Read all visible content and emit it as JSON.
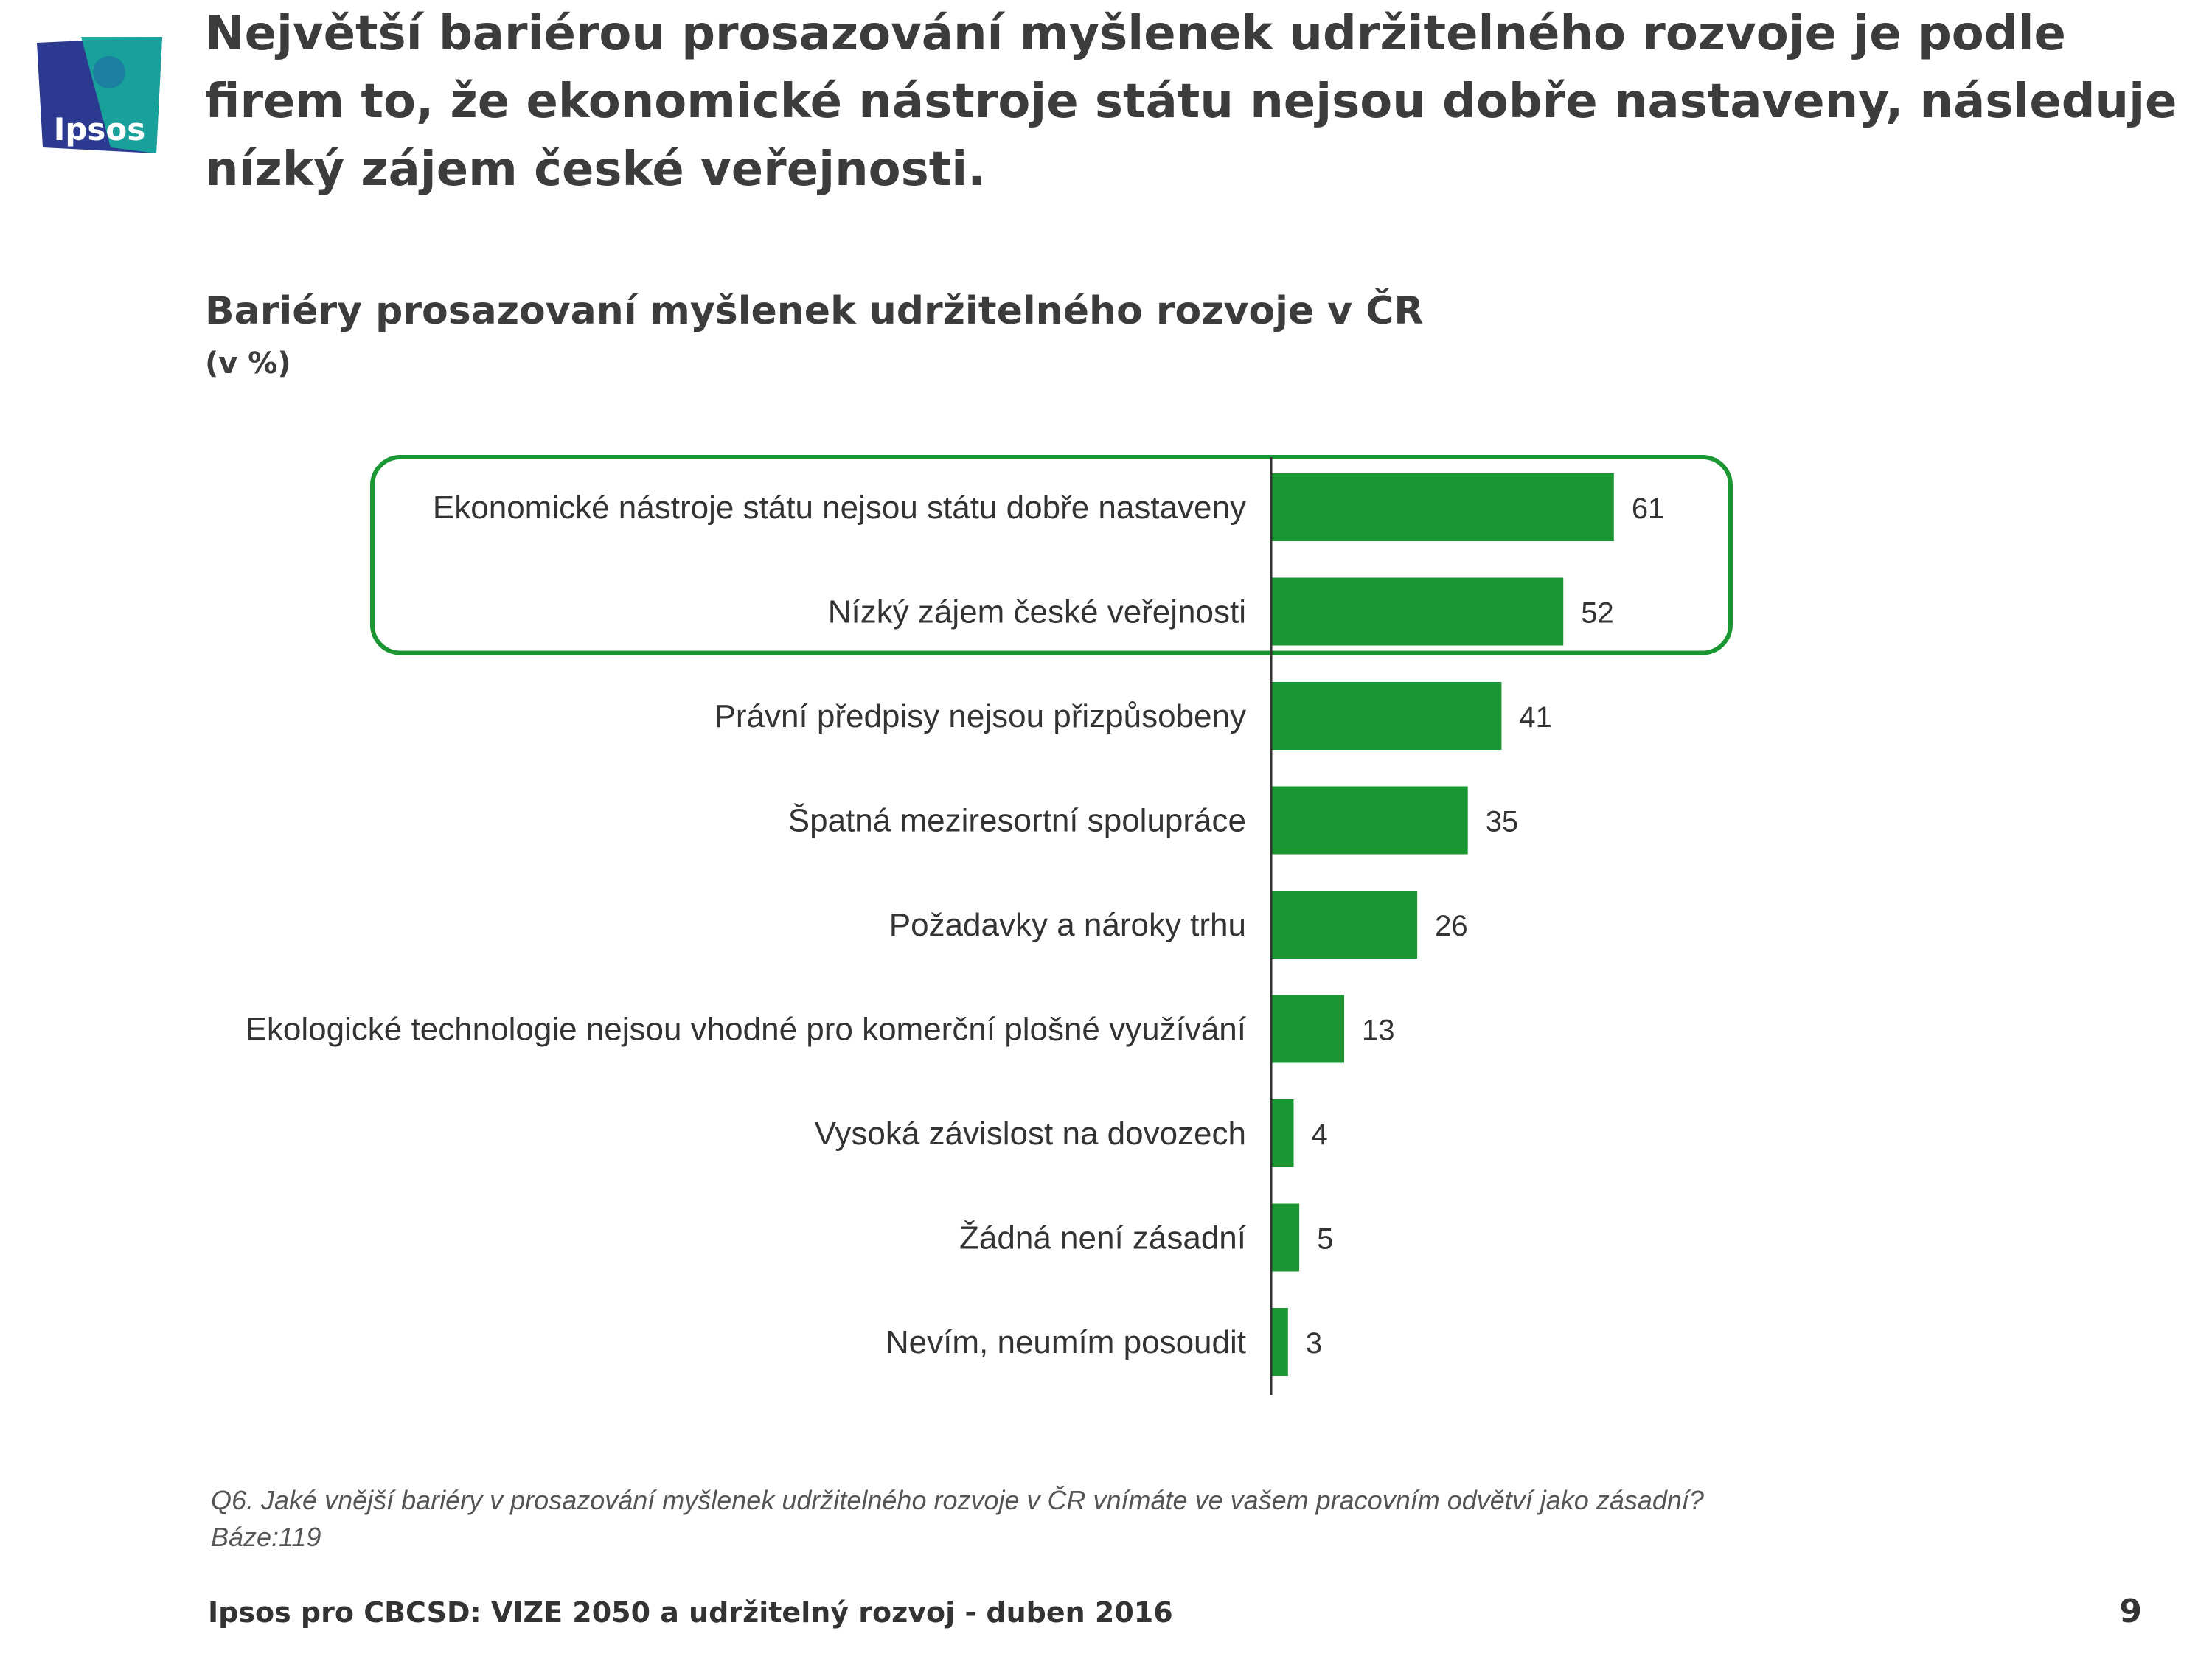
{
  "logo": {
    "text": "Ipsos"
  },
  "headline": "Největší bariérou prosazování myšlenek udržitelného rozvoje je podle firem to, že ekonomické nástroje státu nejsou dobře nastaveny, následuje nízký zájem české veřejnosti.",
  "footnote": {
    "question": "Q6. Jaké vnější bariéry v prosazování myšlenek udržitelného rozvoje v ČR vnímáte ve vašem pracovním odvětví jako zásadní?",
    "base": "Báze:119"
  },
  "footer": {
    "source": "Ipsos pro CBCSD: VIZE 2050 a udržitelný rozvoj - duben 2016",
    "page_number": "9"
  },
  "colors": {
    "bar": "#1a9632",
    "highlight_border": "#1a9632",
    "logo_blue": "#2b3990",
    "logo_teal": "#17a79c"
  },
  "chart_data": {
    "type": "bar",
    "orientation": "horizontal",
    "title": "Bariéry prosazovaní myšlenek udržitelného rozvoje v ČR",
    "unit": "(v %)",
    "categories": [
      "Ekonomické nástroje státu nejsou státu dobře nastaveny",
      "Nízký zájem české veřejnosti",
      "Právní předpisy nejsou přizpůsobeny",
      "Špatná meziresortní spolupráce",
      "Požadavky a nároky trhu",
      "Ekologické technologie nejsou vhodné pro komerční plošné využívání",
      "Vysoká závislost na dovozech",
      "Žádná není zásadní",
      "Nevím, neumím posoudit"
    ],
    "values": [
      61,
      52,
      41,
      35,
      26,
      13,
      4,
      5,
      3
    ],
    "highlighted_categories": [
      0,
      1
    ],
    "xlim": [
      0,
      100
    ],
    "grid": false,
    "legend": "none"
  }
}
